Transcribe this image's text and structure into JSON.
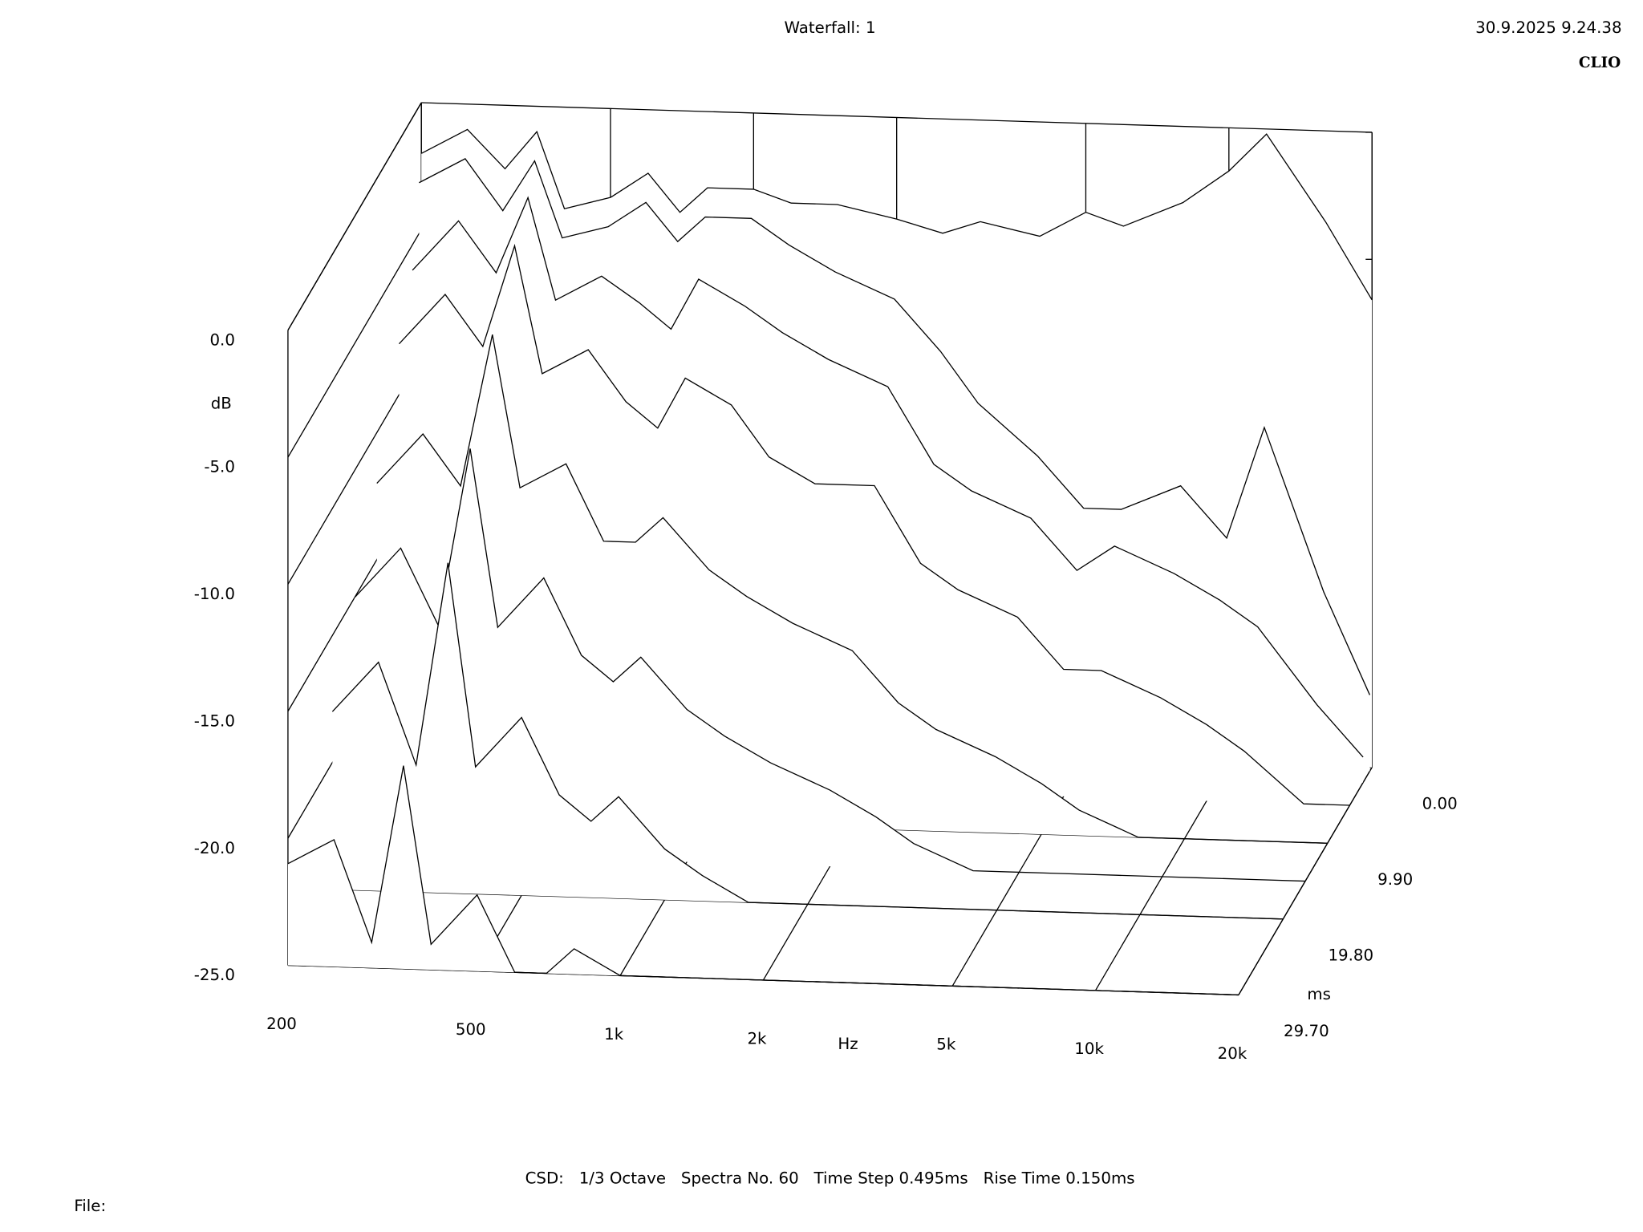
{
  "chart_data": {
    "type": "waterfall",
    "title": "Waterfall: 1",
    "timestamp": "30.9.2025 9.24.38",
    "brand": "CLIO",
    "y_label": "dB",
    "x_label": "Hz",
    "z_label": "ms",
    "footer": "CSD:   1/3 Octave   Spectra No. 60   Time Step 0.495ms   Rise Time 0.150ms",
    "file_label": "File:",
    "log_x": true,
    "color": "#000000",
    "x": [
      200,
      250,
      300,
      350,
      400,
      500,
      600,
      700,
      800,
      1000,
      1200,
      1500,
      2000,
      2500,
      3000,
      4000,
      5000,
      6000,
      8000,
      10000,
      12000,
      16000,
      20000
    ],
    "xlim": [
      200,
      20000
    ],
    "xticks": [
      200,
      500,
      {
        "value": 1000,
        "label": "1k"
      },
      {
        "value": 2000,
        "label": "2k"
      },
      {
        "value": 5000,
        "label": "5k"
      },
      {
        "value": 10000,
        "label": "10k"
      },
      {
        "value": 20000,
        "label": "20k"
      }
    ],
    "ylim": [
      -25,
      0
    ],
    "yticks": [
      {
        "value": 0,
        "label": "0.0"
      },
      {
        "value": -5,
        "label": "-5.0"
      },
      {
        "value": -10,
        "label": "-10.0"
      },
      {
        "value": -15,
        "label": "-15.0"
      },
      {
        "value": -20,
        "label": "-20.0"
      },
      {
        "value": -25,
        "label": "-25.0"
      }
    ],
    "zlim": [
      0,
      29.7
    ],
    "zticks": [
      {
        "value": 0,
        "label": "0.00"
      },
      {
        "value": 9.9,
        "label": "9.90"
      },
      {
        "value": 19.8,
        "label": "19.80"
      },
      {
        "value": 29.7,
        "label": "29.70"
      }
    ],
    "series": [
      {
        "time": 0,
        "values": [
          -2,
          -1,
          -2.5,
          -1,
          -4,
          -3.5,
          -2.5,
          -4,
          -3,
          -3,
          -3.5,
          -3.5,
          -4,
          -4.5,
          -4,
          -4.5,
          -3.5,
          -4,
          -3,
          -1.7,
          -0.2,
          -3.6,
          -6.6
        ]
      },
      {
        "time": 0.495,
        "values": [
          -3,
          -2,
          -4,
          -2,
          -5,
          -4.5,
          -3.5,
          -5,
          -4,
          -4,
          -5,
          -6,
          -7,
          -9,
          -11,
          -13,
          -15,
          -15,
          -14,
          -16,
          -11.6,
          -18,
          -22
        ]
      },
      {
        "time": 1.98,
        "values": [
          -6,
          -4,
          -6,
          -3,
          -7,
          -6,
          -7,
          -8,
          -6,
          -7,
          -8,
          -9,
          -10,
          -13,
          -14,
          -15,
          -17,
          -16,
          -17,
          -18,
          -19,
          -22,
          -24
        ]
      },
      {
        "time": 4.95,
        "values": [
          -8,
          -6,
          -8,
          -4,
          -9,
          -8,
          -10,
          -11,
          -9,
          -10,
          -12,
          -13,
          -13,
          -16,
          -17,
          -18,
          -20,
          -20,
          -21,
          -22,
          -23,
          -25,
          -25
        ]
      },
      {
        "time": 9.9,
        "values": [
          -12,
          -10,
          -12,
          -6,
          -12,
          -11,
          -14,
          -14,
          -13,
          -15,
          -16,
          -17,
          -18,
          -20,
          -21,
          -22,
          -23,
          -24,
          -25,
          -25,
          -25,
          -25,
          -25
        ]
      },
      {
        "time": 14.85,
        "values": [
          -15,
          -13,
          -16,
          -9,
          -16,
          -14,
          -17,
          -18,
          -17,
          -19,
          -20,
          -21,
          -22,
          -23,
          -24,
          -25,
          -25,
          -25,
          -25,
          -25,
          -25,
          -25,
          -25
        ]
      },
      {
        "time": 19.8,
        "values": [
          -18,
          -16,
          -20,
          -12,
          -20,
          -18,
          -21,
          -22,
          -21,
          -23,
          -24,
          -25,
          -25,
          -25,
          -25,
          -25,
          -25,
          -25,
          -25,
          -25,
          -25,
          -25,
          -25
        ]
      },
      {
        "time": 29.7,
        "values": [
          -21,
          -20,
          -24,
          -17,
          -24,
          -22,
          -25,
          -25,
          -24,
          -25,
          -25,
          -25,
          -25,
          -25,
          -25,
          -25,
          -25,
          -25,
          -25,
          -25,
          -25,
          -25,
          -25
        ]
      }
    ]
  }
}
